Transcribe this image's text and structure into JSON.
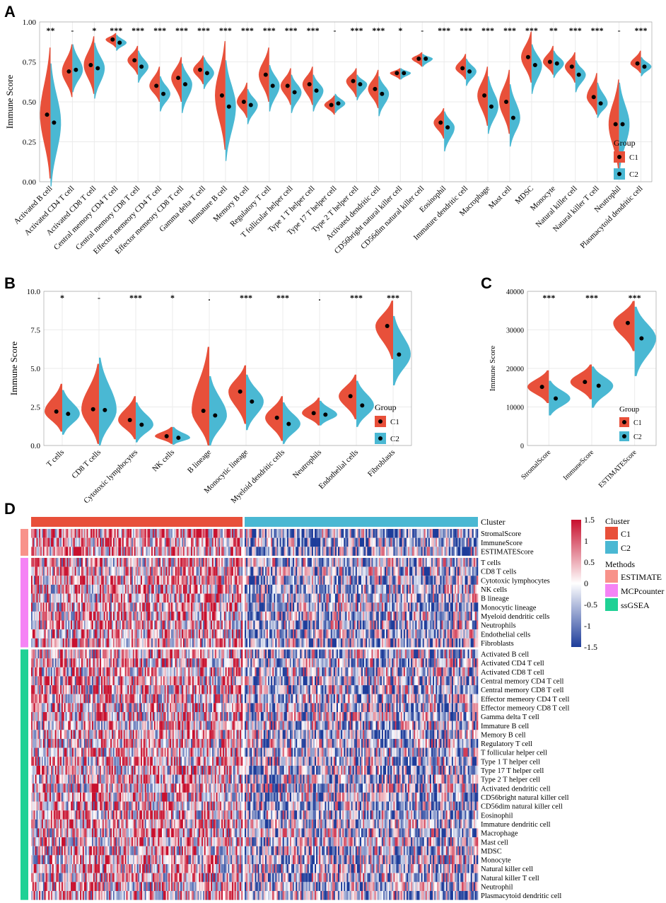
{
  "colors": {
    "c1": "#E8503A",
    "c2": "#4AB8D3",
    "grid": "#EBEBEB",
    "estimate": "#F8928A",
    "mcp": "#F583F5",
    "ssgsea": "#1FD195",
    "hi": "#C8102E",
    "mid": "#FFFFFF",
    "lo": "#1D3C9A"
  },
  "chart_data": [
    {
      "panel": "A",
      "type": "split-violin",
      "ylabel": "Immune Score",
      "ylim": [
        0,
        1
      ],
      "yticks": [
        "0.00",
        "0.25",
        "0.50",
        "0.75",
        "1.00"
      ],
      "ytick_values": [
        0,
        0.25,
        0.5,
        0.75,
        1
      ],
      "legend": {
        "title": "Group",
        "entries": [
          "C1",
          "C2"
        ]
      },
      "categories": [
        "Activated B cell",
        "Activated CD4 T cell",
        "Activated CD8 T cell",
        "Central memory CD4 T cell",
        "Central memory CD8 T cell",
        "Effector memeory CD4 T cell",
        "Effector memeory CD8 T cell",
        "Gamma delta T cell",
        "Immature  B cell",
        "Memory B cell",
        "Regulatory T cell",
        "T follicular helper cell",
        "Type 1 T helper cell",
        "Type 17 T helper cell",
        "Type 2 T helper cell",
        "Activated dendritic cell",
        "CD56bright natural killer cell",
        "CD56dim natural killer cell",
        "Eosinophil",
        "Immature dendritic cell",
        "Macrophage",
        "Mast cell",
        "MDSC",
        "Monocyte",
        "Natural killer cell",
        "Natural killer T cell",
        "Neutrophil",
        "Plasmacytoid dendritic cell"
      ],
      "significance": [
        "**",
        "-",
        "*",
        "***",
        "***",
        "***",
        "***",
        "***",
        "***",
        "***",
        "***",
        "***",
        "***",
        "-",
        "***",
        "***",
        "*",
        "-",
        "***",
        "***",
        "***",
        "***",
        "***",
        "**",
        "***",
        "***",
        "-",
        "***"
      ],
      "series": [
        {
          "name": "C1",
          "mean": [
            0.42,
            0.69,
            0.73,
            0.89,
            0.76,
            0.6,
            0.65,
            0.7,
            0.54,
            0.5,
            0.67,
            0.6,
            0.61,
            0.48,
            0.63,
            0.58,
            0.68,
            0.77,
            0.37,
            0.71,
            0.54,
            0.5,
            0.78,
            0.75,
            0.72,
            0.53,
            0.36,
            0.74
          ],
          "min": [
            0.02,
            0.53,
            0.55,
            0.84,
            0.67,
            0.5,
            0.5,
            0.61,
            0.2,
            0.4,
            0.5,
            0.48,
            0.48,
            0.42,
            0.53,
            0.46,
            0.64,
            0.72,
            0.27,
            0.64,
            0.35,
            0.3,
            0.62,
            0.67,
            0.62,
            0.42,
            0.07,
            0.68
          ],
          "max": [
            0.84,
            0.86,
            0.91,
            0.93,
            0.85,
            0.72,
            0.78,
            0.79,
            0.88,
            0.62,
            0.84,
            0.71,
            0.72,
            0.54,
            0.71,
            0.7,
            0.71,
            0.81,
            0.46,
            0.8,
            0.72,
            0.7,
            0.94,
            0.85,
            0.81,
            0.68,
            0.64,
            0.82
          ]
        },
        {
          "name": "C2",
          "mean": [
            0.37,
            0.7,
            0.71,
            0.87,
            0.72,
            0.55,
            0.61,
            0.68,
            0.47,
            0.48,
            0.6,
            0.56,
            0.57,
            0.49,
            0.61,
            0.55,
            0.68,
            0.77,
            0.34,
            0.69,
            0.47,
            0.4,
            0.73,
            0.74,
            0.67,
            0.49,
            0.36,
            0.72
          ],
          "min": [
            -0.03,
            0.56,
            0.52,
            0.82,
            0.62,
            0.44,
            0.43,
            0.58,
            0.13,
            0.36,
            0.44,
            0.43,
            0.44,
            0.43,
            0.51,
            0.41,
            0.64,
            0.72,
            0.19,
            0.6,
            0.3,
            0.22,
            0.55,
            0.65,
            0.56,
            0.4,
            0.07,
            0.66
          ],
          "max": [
            0.74,
            0.86,
            0.87,
            0.92,
            0.82,
            0.66,
            0.74,
            0.78,
            0.76,
            0.58,
            0.73,
            0.67,
            0.67,
            0.55,
            0.67,
            0.66,
            0.71,
            0.8,
            0.44,
            0.77,
            0.66,
            0.61,
            0.86,
            0.82,
            0.76,
            0.62,
            0.62,
            0.78
          ]
        }
      ]
    },
    {
      "panel": "B",
      "type": "split-violin",
      "ylabel": "Immune Score",
      "ylim": [
        0,
        10
      ],
      "yticks": [
        "0.0",
        "2.5",
        "5.0",
        "7.5",
        "10.0"
      ],
      "ytick_values": [
        0,
        2.5,
        5,
        7.5,
        10
      ],
      "legend": {
        "title": "Group",
        "entries": [
          "C1",
          "C2"
        ]
      },
      "categories": [
        "T cells",
        "CD8 T cells",
        "Cytotoxic lymphocytes",
        "NK cells",
        "B lineage",
        "Monocytic lineage",
        "Myeloid dendritic cells",
        "Neutrophils",
        "Endothelial cells",
        "Fibroblasts"
      ],
      "significance": [
        "*",
        "-",
        "***",
        "*",
        ".",
        "***",
        "***",
        ".",
        "***",
        "***"
      ],
      "series": [
        {
          "name": "C1",
          "mean": [
            2.2,
            2.35,
            1.65,
            0.6,
            2.25,
            3.5,
            1.8,
            2.1,
            3.2,
            7.75
          ],
          "min": [
            0.9,
            0.1,
            0.4,
            0.1,
            0.0,
            1.4,
            0.3,
            1.3,
            1.7,
            5.6
          ],
          "max": [
            4.0,
            5.3,
            3.2,
            1.2,
            6.4,
            5.2,
            3.2,
            3.1,
            4.6,
            9.4
          ]
        },
        {
          "name": "C2",
          "mean": [
            2.05,
            2.3,
            1.35,
            0.5,
            1.95,
            2.85,
            1.4,
            2.0,
            2.6,
            5.9
          ],
          "min": [
            0.7,
            0.0,
            0.2,
            0.05,
            0.0,
            1.0,
            0.1,
            1.3,
            1.2,
            3.9
          ],
          "max": [
            3.6,
            5.7,
            2.8,
            1.2,
            4.5,
            4.6,
            2.8,
            2.9,
            4.2,
            8.4
          ]
        }
      ]
    },
    {
      "panel": "C",
      "type": "split-violin",
      "ylabel": "Immune Score",
      "ylim": [
        0,
        40000
      ],
      "yticks": [
        "0",
        "10000",
        "20000",
        "30000",
        "40000"
      ],
      "ytick_values": [
        0,
        10000,
        20000,
        30000,
        40000
      ],
      "legend": {
        "title": "Group",
        "entries": [
          "C1",
          "C2"
        ]
      },
      "categories": [
        "StromalScore",
        "ImmuneScore",
        "ESTIMATEScore"
      ],
      "significance": [
        "***",
        "***",
        "***"
      ],
      "series": [
        {
          "name": "C1",
          "mean": [
            15200,
            16500,
            31800
          ],
          "min": [
            11000,
            12000,
            24500
          ],
          "max": [
            19500,
            21000,
            37500
          ]
        },
        {
          "name": "C2",
          "mean": [
            12200,
            15500,
            27800
          ],
          "min": [
            7800,
            9800,
            18000
          ],
          "max": [
            16800,
            20500,
            36000
          ]
        }
      ]
    },
    {
      "panel": "D",
      "type": "heatmap",
      "cluster_label": "Cluster",
      "rows": [
        {
          "method": "ESTIMATE",
          "labels": [
            "StromalScore",
            "ImmuneScore",
            "ESTIMATEScore"
          ]
        },
        {
          "method": "MCPcounter",
          "labels": [
            "T cells",
            "CD8 T cells",
            "Cytotoxic lymphocytes",
            "NK cells",
            "B lineage",
            "Monocytic lineage",
            "Myeloid dendritic cells",
            "Neutrophils",
            "Endothelial cells",
            "Fibroblasts"
          ]
        },
        {
          "method": "ssGSEA",
          "labels": [
            "Activated B cell",
            "Activated CD4 T cell",
            "Activated CD8 T cell",
            "Central memory CD4 T cell",
            "Central memory CD8 T cell",
            "Effector memeory CD4 T cell",
            "Effector memeory CD8 T cell",
            "Gamma delta T cell",
            "Immature  B cell",
            "Memory B cell",
            "Regulatory T cell",
            "T follicular helper cell",
            "Type 1 T helper cell",
            "Type 17 T helper cell",
            "Type 2 T helper cell",
            "Activated dendritic cell",
            "CD56bright natural killer cell",
            "CD56dim natural killer cell",
            "Eosinophil",
            "Immature dendritic cell",
            "Macrophage",
            "Mast cell",
            "MDSC",
            "Monocyte",
            "Natural killer cell",
            "Natural killer T cell",
            "Neutrophil",
            "Plasmacytoid dendritic cell"
          ]
        }
      ],
      "colorbar": {
        "ticks": [
          "1.5",
          "1",
          "0.5",
          "0",
          "-0.5",
          "-1",
          "-1.5"
        ],
        "range": [
          -1.5,
          1.5
        ]
      },
      "legend_cluster": {
        "title": "Cluster",
        "entries": [
          "C1",
          "C2"
        ]
      },
      "legend_methods": {
        "title": "Methods",
        "entries": [
          "ESTIMATE",
          "MCPcounter",
          "ssGSEA"
        ]
      }
    }
  ],
  "panel_labels": [
    "A",
    "B",
    "C",
    "D"
  ]
}
